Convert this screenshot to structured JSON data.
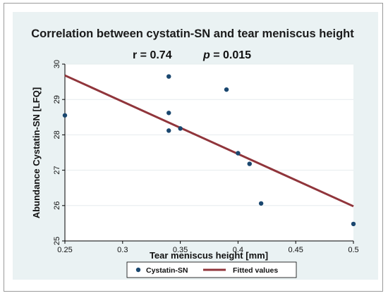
{
  "chart_data": {
    "type": "scatter",
    "title": "Correlation between cystatin-SN and tear meniscus height",
    "annotation": {
      "r_label": "r = 0.74",
      "p_prefix": "p",
      "p_suffix": " = 0.015"
    },
    "xlabel": "Tear meniscus height [mm]",
    "ylabel": "Abundance Cystatin-SN [LFQ]",
    "xlim": [
      0.25,
      0.5
    ],
    "ylim": [
      25,
      30
    ],
    "x_ticks": [
      0.25,
      0.3,
      0.35,
      0.4,
      0.45,
      0.5
    ],
    "x_tick_labels": [
      "0.25",
      "0.3",
      "0.35",
      "0.4",
      "0.45",
      "0.5"
    ],
    "y_ticks": [
      25,
      26,
      27,
      28,
      29,
      30
    ],
    "y_tick_labels": [
      "25",
      "26",
      "27",
      "28",
      "29",
      "30"
    ],
    "grid": "horizontal",
    "legend_position": "bottom",
    "series": [
      {
        "name": "Cystatin-SN",
        "kind": "scatter",
        "color": "#1a476f",
        "points": [
          {
            "x": 0.25,
            "y": 28.55
          },
          {
            "x": 0.34,
            "y": 29.65
          },
          {
            "x": 0.34,
            "y": 28.62
          },
          {
            "x": 0.34,
            "y": 28.12
          },
          {
            "x": 0.35,
            "y": 28.18
          },
          {
            "x": 0.39,
            "y": 29.28
          },
          {
            "x": 0.4,
            "y": 27.48
          },
          {
            "x": 0.41,
            "y": 27.18
          },
          {
            "x": 0.42,
            "y": 26.06
          },
          {
            "x": 0.5,
            "y": 25.48
          }
        ]
      },
      {
        "name": "Fitted values",
        "kind": "line",
        "color": "#90353b",
        "points": [
          {
            "x": 0.25,
            "y": 29.68
          },
          {
            "x": 0.5,
            "y": 25.98
          }
        ]
      }
    ]
  }
}
